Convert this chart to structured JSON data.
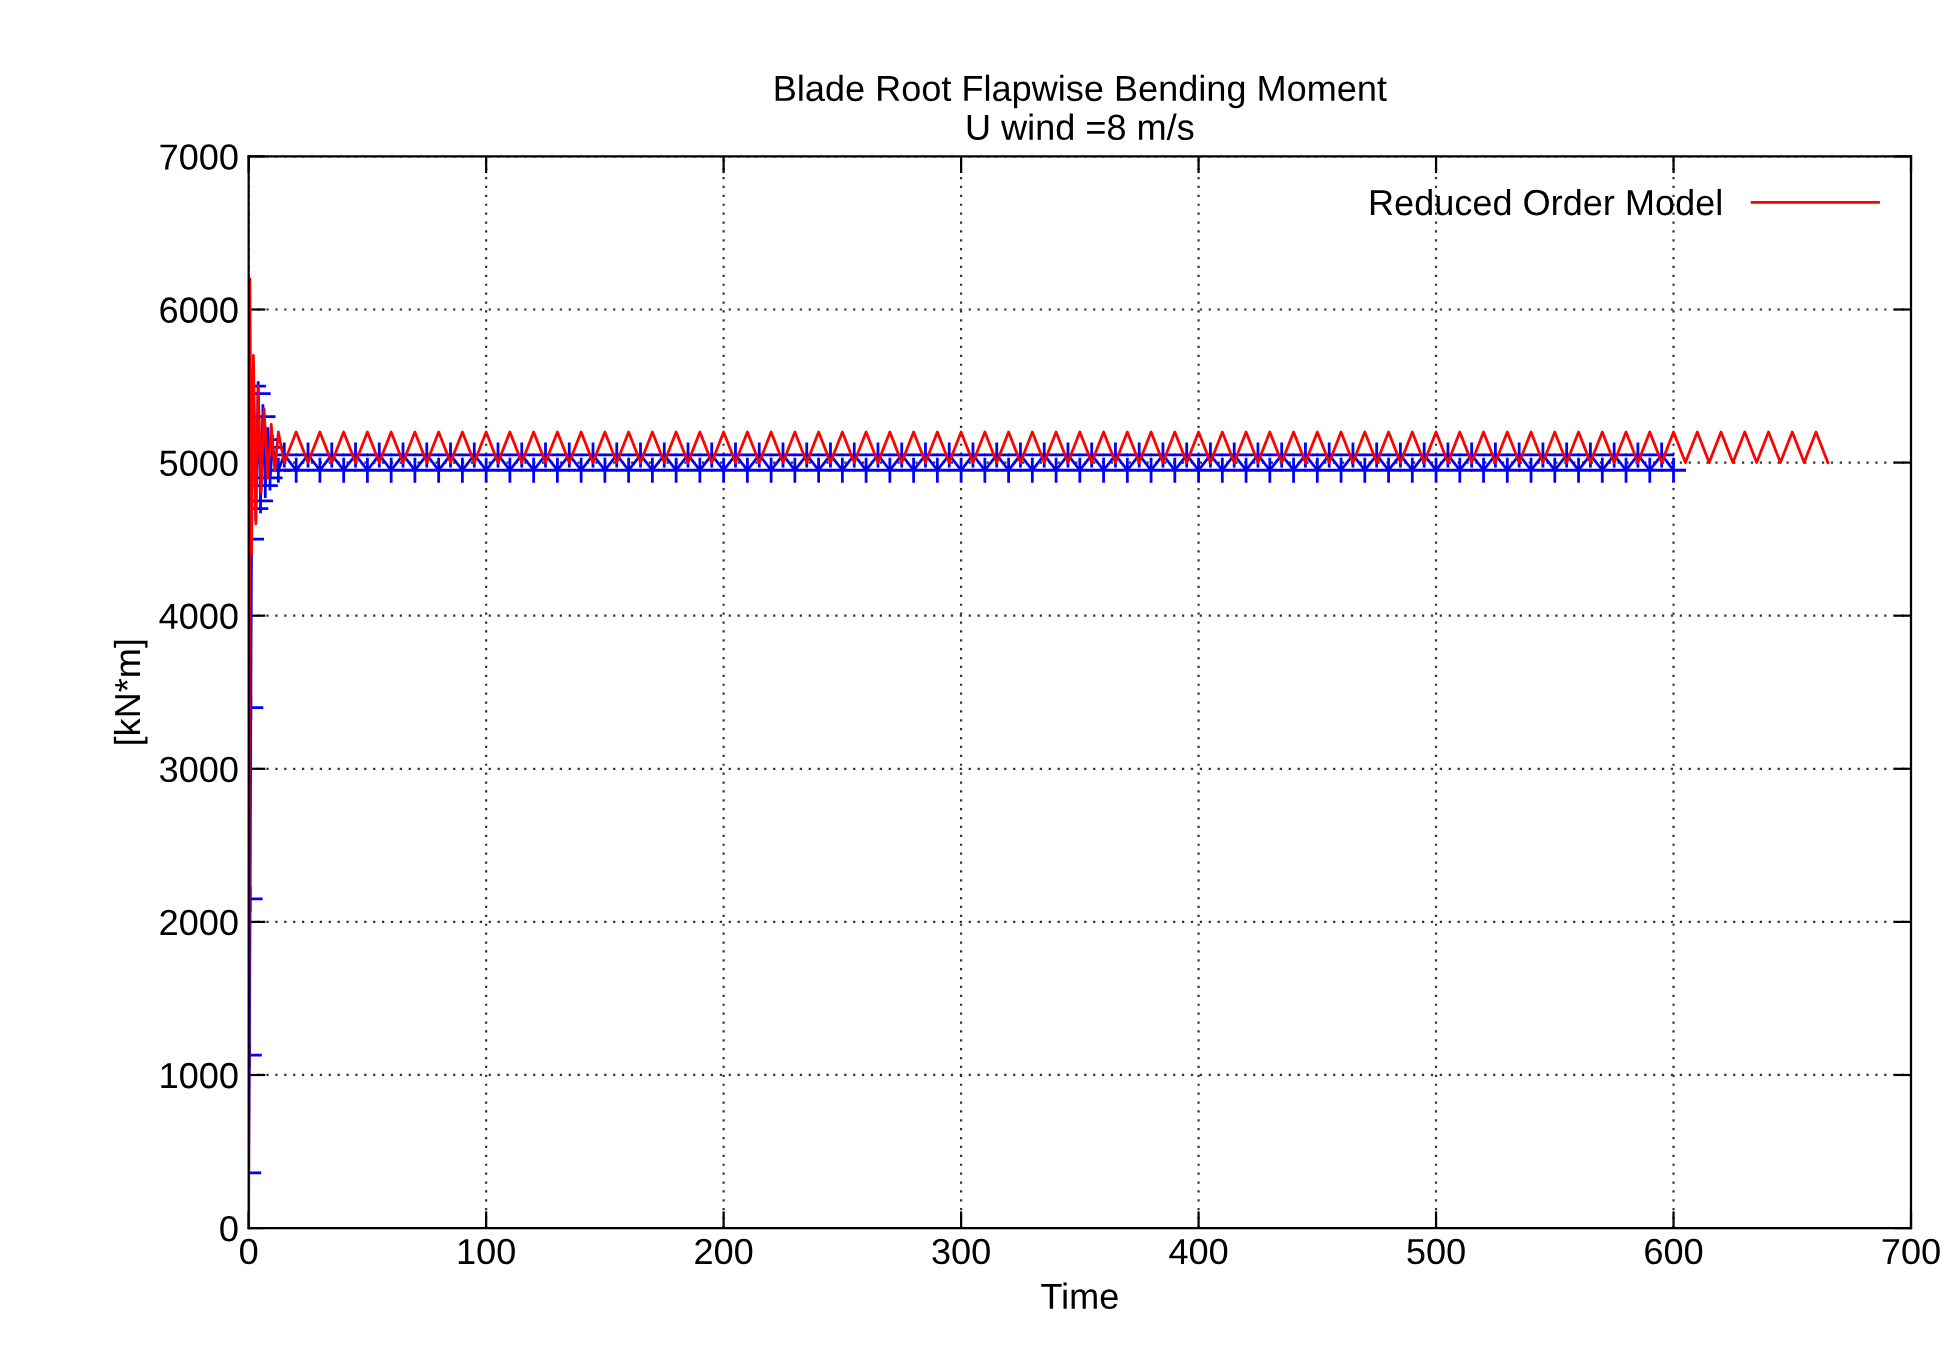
{
  "chart_data": {
    "type": "line",
    "title": "Blade Root Flapwise Bending Moment\nU wind =8 m/s",
    "xlabel": "Time",
    "ylabel": "[kN*m]",
    "xlim": [
      0,
      700
    ],
    "ylim": [
      0,
      7000
    ],
    "xticks": [
      0,
      100,
      200,
      300,
      400,
      500,
      600,
      700
    ],
    "yticks": [
      0,
      1000,
      2000,
      3000,
      4000,
      5000,
      6000,
      7000
    ],
    "grid": true,
    "legend": "top right",
    "series": [
      {
        "color": "#0000ff",
        "marker": "cross",
        "x": [
          0,
          0.3,
          0.6,
          0.9,
          1.2,
          1.6,
          2,
          3,
          4,
          5,
          6,
          7,
          8,
          9,
          10,
          12.5,
          15,
          20,
          25,
          30,
          35,
          40,
          45,
          50,
          55,
          60,
          65,
          70,
          75,
          80,
          85,
          90,
          95,
          100,
          105,
          110,
          115,
          120,
          125,
          130,
          135,
          140,
          145,
          150,
          155,
          160,
          165,
          170,
          175,
          180,
          185,
          190,
          195,
          200,
          205,
          210,
          215,
          220,
          225,
          230,
          235,
          240,
          245,
          250,
          255,
          260,
          265,
          270,
          275,
          280,
          285,
          290,
          295,
          300,
          305,
          310,
          315,
          320,
          325,
          330,
          335,
          340,
          345,
          350,
          355,
          360,
          365,
          370,
          375,
          380,
          385,
          390,
          395,
          400,
          405,
          410,
          415,
          420,
          425,
          430,
          435,
          440,
          445,
          450,
          455,
          460,
          465,
          470,
          475,
          480,
          485,
          490,
          495,
          500,
          505,
          510,
          515,
          520,
          525,
          530,
          535,
          540,
          545,
          550,
          555,
          560,
          565,
          570,
          575,
          580,
          585,
          590,
          595,
          600
        ],
        "values": [
          360,
          1130,
          2150,
          3400,
          4500,
          null,
          5500,
          4700,
          5450,
          4750,
          5300,
          4850,
          5150,
          4900,
          5100,
          4950,
          5050,
          4950,
          5050,
          4950,
          5050,
          4950,
          5050,
          4950,
          5050,
          4950,
          5050,
          4950,
          5050,
          4950,
          5050,
          4950,
          5050,
          4950,
          5050,
          4950,
          5050,
          4950,
          5050,
          4950,
          5050,
          4950,
          5050,
          4950,
          5050,
          4950,
          5050,
          4950,
          5050,
          4950,
          5050,
          4950,
          5050,
          4950,
          5050,
          4950,
          5050,
          4950,
          5050,
          4950,
          5050,
          4950,
          5050,
          4950,
          5050,
          4950,
          5050,
          4950,
          5050,
          4950,
          5050,
          4950,
          5050,
          4950,
          5050,
          4950,
          5050,
          4950,
          5050,
          4950,
          5050,
          4950,
          5050,
          4950,
          5050,
          4950,
          5050,
          4950,
          5050,
          4950,
          5050,
          4950,
          5050,
          4950,
          5050,
          4950,
          5050,
          4950,
          5050,
          4950,
          5050,
          4950,
          5050,
          4950,
          5050,
          4950,
          5050,
          4950,
          5050,
          4950,
          5050,
          4950,
          5050,
          4950,
          5050,
          4950,
          5050,
          4950,
          5050,
          4950,
          5050,
          4950,
          5050,
          4950,
          5050,
          4950,
          5050,
          4950,
          5050,
          4950,
          5050,
          4950,
          5050,
          4950
        ]
      },
      {
        "name": "Reduced Order Model",
        "color": "#ff0000",
        "marker": "none",
        "x": [
          0,
          0.5,
          1.2,
          2,
          3,
          4,
          5.2,
          6.5,
          8,
          9.5,
          11,
          12.5,
          15,
          20,
          25,
          30,
          35,
          40,
          45,
          50,
          55,
          60,
          65,
          70,
          75,
          80,
          85,
          90,
          95,
          100,
          105,
          110,
          115,
          120,
          125,
          130,
          135,
          140,
          145,
          150,
          155,
          160,
          165,
          170,
          175,
          180,
          185,
          190,
          195,
          200,
          205,
          210,
          215,
          220,
          225,
          230,
          235,
          240,
          245,
          250,
          255,
          260,
          265,
          270,
          275,
          280,
          285,
          290,
          295,
          300,
          305,
          310,
          315,
          320,
          325,
          330,
          335,
          340,
          345,
          350,
          355,
          360,
          365,
          370,
          375,
          380,
          385,
          390,
          395,
          400,
          405,
          410,
          415,
          420,
          425,
          430,
          435,
          440,
          445,
          450,
          455,
          460,
          465,
          470,
          475,
          480,
          485,
          490,
          495,
          500,
          505,
          510,
          515,
          520,
          525,
          530,
          535,
          540,
          545,
          550,
          555,
          560,
          565,
          570,
          575,
          580,
          585,
          590,
          595,
          600,
          605,
          610,
          615,
          620,
          625,
          630,
          635,
          640,
          645,
          650,
          655,
          660,
          665
        ],
        "values": [
          0,
          6200,
          4400,
          5700,
          4600,
          5500,
          4800,
          5350,
          4900,
          5250,
          4950,
          5200,
          5000,
          5200,
          5000,
          5200,
          5000,
          5200,
          5000,
          5200,
          5000,
          5200,
          5000,
          5200,
          5000,
          5200,
          5000,
          5200,
          5000,
          5200,
          5000,
          5200,
          5000,
          5200,
          5000,
          5200,
          5000,
          5200,
          5000,
          5200,
          5000,
          5200,
          5000,
          5200,
          5000,
          5200,
          5000,
          5200,
          5000,
          5200,
          5000,
          5200,
          5000,
          5200,
          5000,
          5200,
          5000,
          5200,
          5000,
          5200,
          5000,
          5200,
          5000,
          5200,
          5000,
          5200,
          5000,
          5200,
          5000,
          5200,
          5000,
          5200,
          5000,
          5200,
          5000,
          5200,
          5000,
          5200,
          5000,
          5200,
          5000,
          5200,
          5000,
          5200,
          5000,
          5200,
          5000,
          5200,
          5000,
          5200,
          5000,
          5200,
          5000,
          5200,
          5000,
          5200,
          5000,
          5200,
          5000,
          5200,
          5000,
          5200,
          5000,
          5200,
          5000,
          5200,
          5000,
          5200,
          5000,
          5200,
          5000,
          5200,
          5000,
          5200,
          5000,
          5200,
          5000,
          5200,
          5000,
          5200,
          5000,
          5200,
          5000,
          5200,
          5000,
          5200,
          5000,
          5200,
          5000,
          5200,
          5000,
          5200,
          5000,
          5200,
          5000,
          5200,
          5000,
          5200,
          5000,
          5200,
          5000,
          5200,
          5000
        ]
      }
    ]
  }
}
